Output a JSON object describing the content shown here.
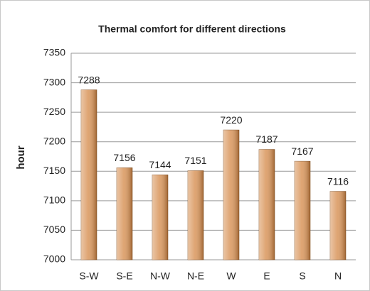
{
  "chart_data": {
    "type": "bar",
    "title": "Thermal comfort for different directions",
    "y_label": "hour",
    "categories": [
      "S-W",
      "S-E",
      "N-W",
      "N-E",
      "W",
      "E",
      "S",
      "N"
    ],
    "values": [
      7288,
      7156,
      7144,
      7151,
      7220,
      7187,
      7167,
      7116
    ],
    "color": "#d9955a",
    "ylim": [
      7000,
      7350
    ],
    "yticks": [
      7000,
      7050,
      7100,
      7150,
      7200,
      7250,
      7300,
      7350
    ],
    "grid": true
  }
}
